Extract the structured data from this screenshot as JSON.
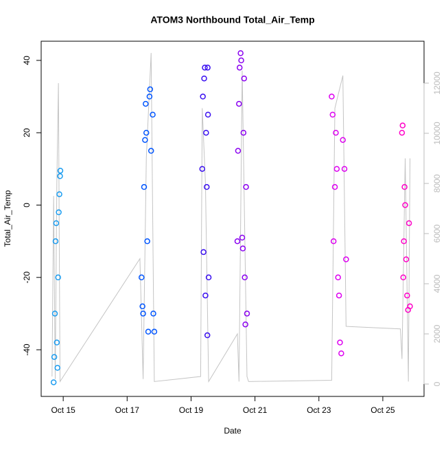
{
  "chart_data": {
    "type": "scatter",
    "title": "ATOM3 Northbound Total_Air_Temp",
    "x_label": "Date",
    "y_label": "Total_Air_Temp",
    "xlim": [
      14.31,
      26.29
    ],
    "ylim": [
      -52.9,
      45.3
    ],
    "y2lim": [
      -493,
      13671
    ],
    "xticks": [
      {
        "value": 15,
        "label": "Oct 15"
      },
      {
        "value": 17,
        "label": "Oct 17"
      },
      {
        "value": 19,
        "label": "Oct 19"
      },
      {
        "value": 21,
        "label": "Oct 21"
      },
      {
        "value": 23,
        "label": "Oct 23"
      },
      {
        "value": 25,
        "label": "Oct 25"
      }
    ],
    "yticks": [
      -40,
      -20,
      0,
      20,
      40
    ],
    "y2ticks": [
      0,
      2000,
      4000,
      6000,
      8000,
      10000,
      12000
    ],
    "y2_color": "#bbbbbb",
    "series": [
      {
        "type": "line",
        "axis": "y2",
        "color": "#c4c4c4",
        "x": [
          14.65,
          14.7,
          14.75,
          14.8,
          14.85,
          14.9,
          17.4,
          17.5,
          17.6,
          17.75,
          17.85,
          19.3,
          19.35,
          19.45,
          19.55,
          20.45,
          20.5,
          20.6,
          20.75,
          20.8,
          23.4,
          23.5,
          23.75,
          23.85,
          25.55,
          25.6,
          25.7,
          25.8,
          25.85
        ],
        "values": [
          300,
          7500,
          200,
          8000,
          12000,
          100,
          5000,
          200,
          9000,
          13200,
          100,
          300,
          11000,
          8000,
          100,
          2000,
          100,
          12500,
          300,
          100,
          150,
          11000,
          12300,
          2300,
          2200,
          1000,
          9000,
          100,
          9000
        ]
      },
      {
        "color": "#1a9cf0",
        "x": [
          14.7,
          14.72,
          14.74,
          14.76,
          14.78,
          14.8,
          14.82,
          14.84,
          14.86,
          14.88,
          14.9,
          14.91
        ],
        "values": [
          -49,
          -42,
          -30,
          -10,
          -5,
          -38,
          -45,
          -20,
          -2,
          3,
          8,
          9.5
        ]
      },
      {
        "color": "#0055ff",
        "x": [
          17.45,
          17.48,
          17.5,
          17.53,
          17.56,
          17.58,
          17.6,
          17.63,
          17.66,
          17.7,
          17.72,
          17.75,
          17.8,
          17.82,
          17.85
        ],
        "values": [
          -20,
          -28,
          -30,
          5,
          18,
          28,
          20,
          -10,
          -35,
          30,
          32,
          15,
          25,
          -30,
          -35
        ]
      },
      {
        "color": "#3a0ff0",
        "x": [
          19.35,
          19.37,
          19.39,
          19.41,
          19.43,
          19.45,
          19.47,
          19.49,
          19.51,
          19.52,
          19.53,
          19.55
        ],
        "values": [
          10,
          30,
          -13,
          35,
          38,
          -25,
          20,
          5,
          -36,
          38,
          25,
          -20
        ]
      },
      {
        "color": "#8a00f0",
        "x": [
          20.45,
          20.47,
          20.5,
          20.52,
          20.55,
          20.57,
          20.6,
          20.62,
          20.64,
          20.66,
          20.68,
          20.7,
          20.72,
          20.75
        ],
        "values": [
          -10,
          15,
          28,
          38,
          42,
          40,
          -9,
          -12,
          20,
          35,
          -20,
          -33,
          5,
          -30
        ]
      },
      {
        "color": "#dd00f0",
        "x": [
          23.4,
          23.43,
          23.46,
          23.5,
          23.53,
          23.56,
          23.6,
          23.63,
          23.66,
          23.7,
          23.75,
          23.8,
          23.85
        ],
        "values": [
          30,
          25,
          -10,
          5,
          20,
          10,
          -20,
          -25,
          -38,
          -41,
          18,
          10,
          -15
        ]
      },
      {
        "color": "#ff00c8",
        "x": [
          25.6,
          25.62,
          25.64,
          25.66,
          25.68,
          25.7,
          25.73,
          25.76,
          25.79,
          25.82,
          25.85
        ],
        "values": [
          20,
          22,
          -20,
          -10,
          5,
          0,
          -15,
          -25,
          -29,
          -5,
          -28
        ]
      }
    ]
  }
}
